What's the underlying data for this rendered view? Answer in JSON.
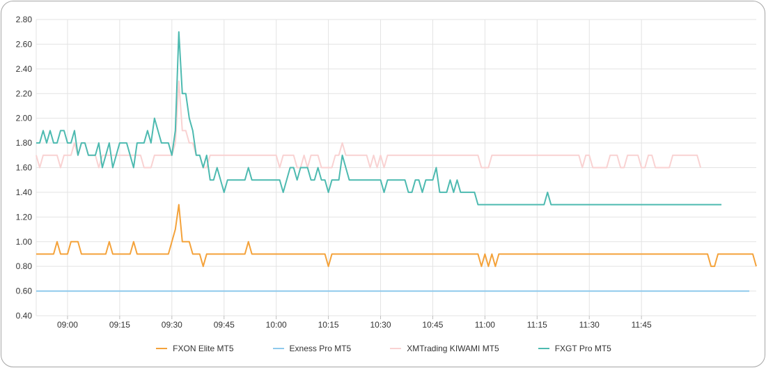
{
  "chart_data": {
    "type": "line",
    "title": "",
    "xlabel": "",
    "ylabel": "",
    "x_tick_labels": [
      "09:00",
      "09:15",
      "09:30",
      "09:45",
      "10:00",
      "10:15",
      "10:30",
      "10:45",
      "11:00",
      "11:15",
      "11:30",
      "11:45"
    ],
    "y_tick_labels": [
      "0.40",
      "0.60",
      "0.80",
      "1.00",
      "1.20",
      "1.40",
      "1.60",
      "1.80",
      "2.00",
      "2.20",
      "2.40",
      "2.60",
      "2.80"
    ],
    "ylim": [
      0.4,
      2.8
    ],
    "grid": true,
    "legend_position": "bottom",
    "series": [
      {
        "name": "FXON Elite MT5",
        "color": "#f4a23a",
        "values": [
          0.9,
          0.9,
          0.9,
          0.9,
          0.9,
          0.9,
          1.0,
          0.9,
          0.9,
          0.9,
          1.0,
          1.0,
          1.0,
          0.9,
          0.9,
          0.9,
          0.9,
          0.9,
          0.9,
          0.9,
          0.9,
          1.0,
          0.9,
          0.9,
          0.9,
          0.9,
          0.9,
          0.9,
          1.0,
          0.9,
          0.9,
          0.9,
          0.9,
          0.9,
          0.9,
          0.9,
          0.9,
          0.9,
          0.9,
          1.0,
          1.1,
          1.3,
          1.0,
          1.0,
          1.0,
          0.9,
          0.9,
          0.9,
          0.8,
          0.9,
          0.9,
          0.9,
          0.9,
          0.9,
          0.9,
          0.9,
          0.9,
          0.9,
          0.9,
          0.9,
          0.9,
          1.0,
          0.9,
          0.9,
          0.9,
          0.9,
          0.9,
          0.9,
          0.9,
          0.9,
          0.9,
          0.9,
          0.9,
          0.9,
          0.9,
          0.9,
          0.9,
          0.9,
          0.9,
          0.9,
          0.9,
          0.9,
          0.9,
          0.9,
          0.8,
          0.9,
          0.9,
          0.9,
          0.9,
          0.9,
          0.9,
          0.9,
          0.9,
          0.9,
          0.9,
          0.9,
          0.9,
          0.9,
          0.9,
          0.9,
          0.9,
          0.9,
          0.9,
          0.9,
          0.9,
          0.9,
          0.9,
          0.9,
          0.9,
          0.9,
          0.9,
          0.9,
          0.9,
          0.9,
          0.9,
          0.9,
          0.9,
          0.9,
          0.9,
          0.9,
          0.9,
          0.9,
          0.9,
          0.9,
          0.9,
          0.9,
          0.9,
          0.9,
          0.8,
          0.9,
          0.8,
          0.9,
          0.8,
          0.9,
          0.9,
          0.9,
          0.9,
          0.9,
          0.9,
          0.9,
          0.9,
          0.9,
          0.9,
          0.9,
          0.9,
          0.9,
          0.9,
          0.9,
          0.9,
          0.9,
          0.9,
          0.9,
          0.9,
          0.9,
          0.9,
          0.9,
          0.9,
          0.9,
          0.9,
          0.9,
          0.9,
          0.9,
          0.9,
          0.9,
          0.9,
          0.9,
          0.9,
          0.9,
          0.9,
          0.9,
          0.9,
          0.9,
          0.9,
          0.9,
          0.9,
          0.9,
          0.9,
          0.9,
          0.9,
          0.9,
          0.9,
          0.9,
          0.9,
          0.9,
          0.9,
          0.9,
          0.9,
          0.9,
          0.9,
          0.9,
          0.9,
          0.9,
          0.9,
          0.9,
          0.8,
          0.8,
          0.9,
          0.9,
          0.9,
          0.9,
          0.9,
          0.9,
          0.9,
          0.9,
          0.9,
          0.9,
          0.9,
          0.8
        ]
      },
      {
        "name": "Exness Pro MT5",
        "color": "#8ec9ec",
        "values": [
          0.6,
          0.6,
          0.6,
          0.6,
          0.6,
          0.6,
          0.6,
          0.6,
          0.6,
          0.6,
          0.6,
          0.6,
          0.6,
          0.6,
          0.6,
          0.6,
          0.6,
          0.6,
          0.6,
          0.6,
          0.6,
          0.6,
          0.6,
          0.6,
          0.6,
          0.6,
          0.6,
          0.6,
          0.6,
          0.6,
          0.6,
          0.6,
          0.6,
          0.6,
          0.6,
          0.6,
          0.6,
          0.6,
          0.6,
          0.6,
          0.6,
          0.6,
          0.6,
          0.6,
          0.6,
          0.6,
          0.6,
          0.6,
          0.6,
          0.6,
          0.6,
          0.6,
          0.6,
          0.6,
          0.6,
          0.6,
          0.6,
          0.6,
          0.6,
          0.6,
          0.6,
          0.6,
          0.6,
          0.6,
          0.6,
          0.6,
          0.6,
          0.6,
          0.6,
          0.6,
          0.6,
          0.6,
          0.6,
          0.6,
          0.6,
          0.6,
          0.6,
          0.6,
          0.6,
          0.6,
          0.6,
          0.6,
          0.6,
          0.6,
          0.6,
          0.6,
          0.6,
          0.6,
          0.6,
          0.6,
          0.6,
          0.6,
          0.6,
          0.6,
          0.6,
          0.6,
          0.6,
          0.6,
          0.6,
          0.6,
          0.6,
          0.6,
          0.6,
          0.6,
          0.6,
          0.6,
          0.6,
          0.6,
          0.6,
          0.6,
          0.6,
          0.6,
          0.6,
          0.6,
          0.6,
          0.6,
          0.6,
          0.6,
          0.6,
          0.6,
          0.6,
          0.6,
          0.6,
          0.6,
          0.6,
          0.6,
          0.6,
          0.6,
          0.6,
          0.6,
          0.6,
          0.6,
          0.6,
          0.6,
          0.6,
          0.6,
          0.6,
          0.6,
          0.6,
          0.6,
          0.6,
          0.6,
          0.6,
          0.6,
          0.6,
          0.6,
          0.6,
          0.6,
          0.6,
          0.6,
          0.6,
          0.6,
          0.6,
          0.6,
          0.6,
          0.6,
          0.6,
          0.6,
          0.6,
          0.6,
          0.6,
          0.6,
          0.6,
          0.6,
          0.6,
          0.6,
          0.6,
          0.6,
          0.6,
          0.6,
          0.6,
          0.6,
          0.6,
          0.6,
          0.6,
          0.6,
          0.6,
          0.6,
          0.6,
          0.6,
          0.6,
          0.6,
          0.6,
          0.6,
          0.6,
          0.6,
          0.6,
          0.6,
          0.6,
          0.6,
          0.6,
          0.6,
          0.6,
          0.6,
          0.6,
          0.6,
          0.6,
          0.6,
          0.6,
          0.6,
          0.6,
          0.6,
          0.6,
          0.6,
          0.6,
          0.6
        ]
      },
      {
        "name": "XMTrading KIWAMI MT5",
        "color": "#f9d2d2",
        "values": [
          1.7,
          1.6,
          1.7,
          1.7,
          1.7,
          1.7,
          1.7,
          1.6,
          1.7,
          1.7,
          1.7,
          1.8,
          1.7,
          1.8,
          1.8,
          1.7,
          1.7,
          1.7,
          1.6,
          1.7,
          1.7,
          1.7,
          1.7,
          1.7,
          1.7,
          1.7,
          1.7,
          1.7,
          1.7,
          1.7,
          1.7,
          1.6,
          1.6,
          1.6,
          1.7,
          1.7,
          1.7,
          1.7,
          1.7,
          1.7,
          1.8,
          2.3,
          1.9,
          1.9,
          1.8,
          1.8,
          1.7,
          1.7,
          1.6,
          1.6,
          1.7,
          1.7,
          1.7,
          1.7,
          1.7,
          1.7,
          1.7,
          1.7,
          1.7,
          1.7,
          1.7,
          1.7,
          1.7,
          1.7,
          1.7,
          1.7,
          1.7,
          1.7,
          1.7,
          1.7,
          1.6,
          1.7,
          1.7,
          1.7,
          1.7,
          1.6,
          1.6,
          1.7,
          1.6,
          1.7,
          1.7,
          1.7,
          1.6,
          1.6,
          1.6,
          1.6,
          1.7,
          1.7,
          1.8,
          1.7,
          1.7,
          1.7,
          1.7,
          1.7,
          1.7,
          1.7,
          1.6,
          1.7,
          1.6,
          1.7,
          1.6,
          1.7,
          1.7,
          1.7,
          1.7,
          1.7,
          1.7,
          1.7,
          1.7,
          1.7,
          1.7,
          1.7,
          1.7,
          1.7,
          1.7,
          1.7,
          1.7,
          1.7,
          1.7,
          1.7,
          1.7,
          1.7,
          1.7,
          1.7,
          1.7,
          1.7,
          1.7,
          1.7,
          1.6,
          1.6,
          1.6,
          1.7,
          1.7,
          1.7,
          1.7,
          1.7,
          1.7,
          1.7,
          1.7,
          1.7,
          1.7,
          1.7,
          1.7,
          1.7,
          1.7,
          1.7,
          1.7,
          1.7,
          1.7,
          1.7,
          1.7,
          1.7,
          1.7,
          1.7,
          1.7,
          1.7,
          1.7,
          1.6,
          1.7,
          1.7,
          1.6,
          1.6,
          1.6,
          1.6,
          1.6,
          1.7,
          1.7,
          1.7,
          1.6,
          1.6,
          1.7,
          1.7,
          1.7,
          1.7,
          1.6,
          1.6,
          1.7,
          1.7,
          1.6,
          1.6,
          1.6,
          1.6,
          1.6,
          1.7,
          1.7,
          1.7,
          1.7,
          1.7,
          1.7,
          1.7,
          1.7,
          1.6
        ]
      },
      {
        "name": "FXGT Pro MT5",
        "color": "#4dbab0",
        "values": [
          1.8,
          1.8,
          1.9,
          1.8,
          1.9,
          1.8,
          1.8,
          1.9,
          1.9,
          1.8,
          1.8,
          1.9,
          1.7,
          1.8,
          1.8,
          1.7,
          1.7,
          1.7,
          1.8,
          1.6,
          1.7,
          1.8,
          1.6,
          1.7,
          1.8,
          1.8,
          1.8,
          1.7,
          1.6,
          1.8,
          1.8,
          1.8,
          1.9,
          1.8,
          2.0,
          1.9,
          1.8,
          1.8,
          1.8,
          1.7,
          1.9,
          2.7,
          2.2,
          2.2,
          2.0,
          1.9,
          1.7,
          1.7,
          1.6,
          1.7,
          1.5,
          1.5,
          1.6,
          1.5,
          1.4,
          1.5,
          1.5,
          1.5,
          1.5,
          1.5,
          1.5,
          1.6,
          1.5,
          1.5,
          1.5,
          1.5,
          1.5,
          1.5,
          1.5,
          1.5,
          1.5,
          1.4,
          1.5,
          1.6,
          1.6,
          1.5,
          1.6,
          1.6,
          1.6,
          1.5,
          1.5,
          1.6,
          1.5,
          1.5,
          1.4,
          1.5,
          1.5,
          1.5,
          1.7,
          1.6,
          1.5,
          1.5,
          1.5,
          1.5,
          1.5,
          1.5,
          1.5,
          1.5,
          1.5,
          1.5,
          1.4,
          1.5,
          1.5,
          1.5,
          1.5,
          1.5,
          1.5,
          1.4,
          1.4,
          1.5,
          1.5,
          1.4,
          1.5,
          1.5,
          1.5,
          1.6,
          1.4,
          1.4,
          1.4,
          1.5,
          1.4,
          1.5,
          1.4,
          1.4,
          1.4,
          1.4,
          1.4,
          1.3,
          1.3,
          1.3,
          1.3,
          1.3,
          1.3,
          1.3,
          1.3,
          1.3,
          1.3,
          1.3,
          1.3,
          1.3,
          1.3,
          1.3,
          1.3,
          1.3,
          1.3,
          1.3,
          1.3,
          1.4,
          1.3,
          1.3,
          1.3,
          1.3,
          1.3,
          1.3,
          1.3,
          1.3,
          1.3,
          1.3,
          1.3,
          1.3,
          1.3,
          1.3,
          1.3,
          1.3,
          1.3,
          1.3,
          1.3,
          1.3,
          1.3,
          1.3,
          1.3,
          1.3,
          1.3,
          1.3,
          1.3,
          1.3,
          1.3,
          1.3,
          1.3,
          1.3,
          1.3,
          1.3,
          1.3,
          1.3,
          1.3,
          1.3,
          1.3,
          1.3,
          1.3,
          1.3,
          1.3,
          1.3,
          1.3,
          1.3,
          1.3,
          1.3,
          1.3,
          1.3
        ]
      }
    ]
  }
}
